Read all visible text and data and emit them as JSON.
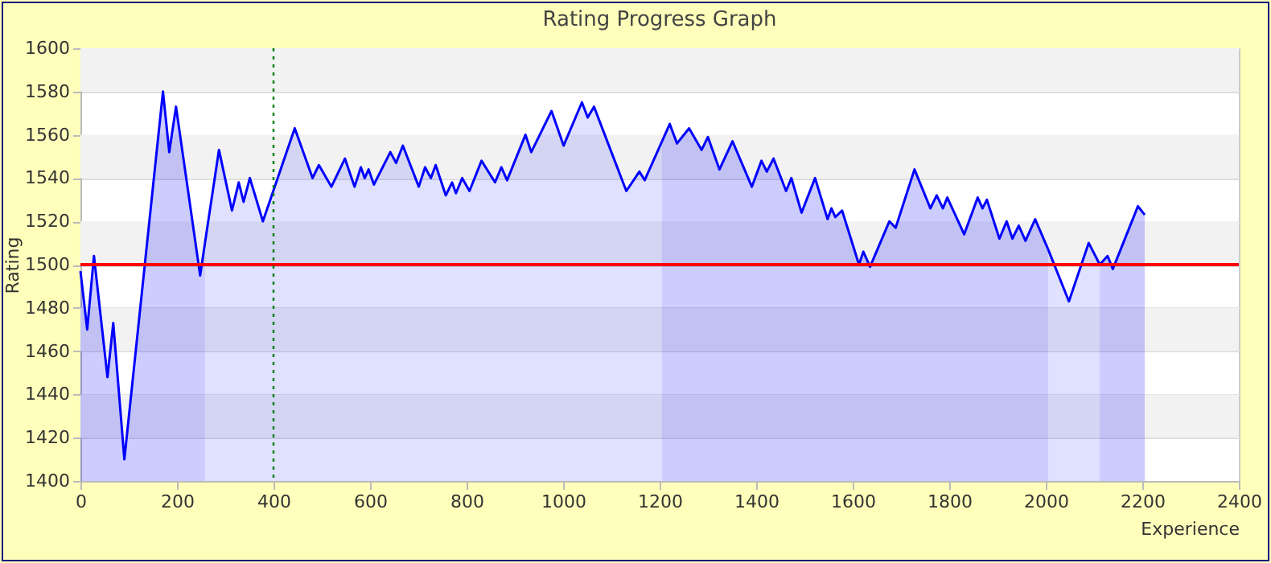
{
  "chart_data": {
    "type": "area",
    "title": "Rating Progress Graph",
    "xlabel": "Experience",
    "ylabel": "Rating",
    "xlim": [
      0,
      2400
    ],
    "xticks": [
      0,
      200,
      400,
      600,
      800,
      1000,
      1200,
      1400,
      1600,
      1800,
      2000,
      2200,
      2400
    ],
    "ylim": [
      1400,
      1600
    ],
    "yticks": [
      1400,
      1420,
      1440,
      1460,
      1480,
      1500,
      1520,
      1540,
      1560,
      1580,
      1600
    ],
    "grid": "y",
    "series": [
      {
        "color": "#0000ff",
        "x": [
          0,
          14,
          28,
          56,
          68,
          91,
          171,
          184,
          198,
          248,
          258
        ],
        "values": [
          1497,
          1470,
          1504,
          1448,
          1473,
          1410,
          1580,
          1552,
          1573,
          1495,
          1510
        ]
      },
      {
        "color": "#0000ff",
        "x": [
          258,
          287,
          314,
          328,
          338,
          351,
          378,
          444,
          481,
          494,
          520,
          548,
          568,
          581,
          589,
          597,
          608,
          642,
          654,
          668,
          701,
          714,
          726,
          736,
          757,
          770,
          778,
          791,
          806,
          831,
          859,
          872,
          884,
          922,
          934,
          976,
          1001,
          1039,
          1051,
          1064,
          1131,
          1158,
          1169,
          1205
        ],
        "values": [
          1510,
          1553,
          1525,
          1538,
          1529,
          1540,
          1520,
          1563,
          1540,
          1546,
          1536,
          1549,
          1536,
          1545,
          1540,
          1544,
          1537,
          1552,
          1547,
          1555,
          1536,
          1545,
          1540,
          1546,
          1532,
          1538,
          1533,
          1540,
          1534,
          1548,
          1538,
          1545,
          1539,
          1560,
          1552,
          1571,
          1555,
          1575,
          1568,
          1573,
          1534,
          1543,
          1539,
          1557
        ]
      },
      {
        "color": "#0000ff",
        "x": [
          1205,
          1221,
          1236,
          1261,
          1287,
          1300,
          1324,
          1351,
          1391,
          1411,
          1422,
          1436,
          1462,
          1473,
          1494,
          1522,
          1548,
          1556,
          1564,
          1578,
          1613,
          1622,
          1636,
          1676,
          1689,
          1728,
          1761,
          1774,
          1787,
          1796,
          1831,
          1859,
          1869,
          1878,
          1904,
          1919,
          1931,
          1944,
          1958,
          1978,
          2005
        ],
        "values": [
          1557,
          1565,
          1556,
          1563,
          1553,
          1559,
          1544,
          1557,
          1536,
          1548,
          1543,
          1549,
          1534,
          1540,
          1524,
          1540,
          1521,
          1526,
          1522,
          1525,
          1500,
          1506,
          1499,
          1520,
          1517,
          1544,
          1526,
          1532,
          1526,
          1531,
          1514,
          1531,
          1526,
          1530,
          1512,
          1520,
          1512,
          1518,
          1511,
          1521,
          1507
        ]
      },
      {
        "color": "#0000ff",
        "x": [
          2005,
          2048,
          2089,
          2112
        ],
        "values": [
          1507,
          1483,
          1510,
          1500
        ]
      },
      {
        "color": "#0000ff",
        "x": [
          2112,
          2128,
          2139,
          2191,
          2205
        ],
        "values": [
          1500,
          1504,
          1498,
          1527,
          1523
        ]
      }
    ],
    "ref_lines": [
      {
        "axis": "y",
        "value": 1500,
        "color": "#ff0000",
        "line_style": "solid"
      },
      {
        "axis": "x",
        "value": 400,
        "color": "#008000",
        "line_style": "dotted"
      }
    ]
  }
}
